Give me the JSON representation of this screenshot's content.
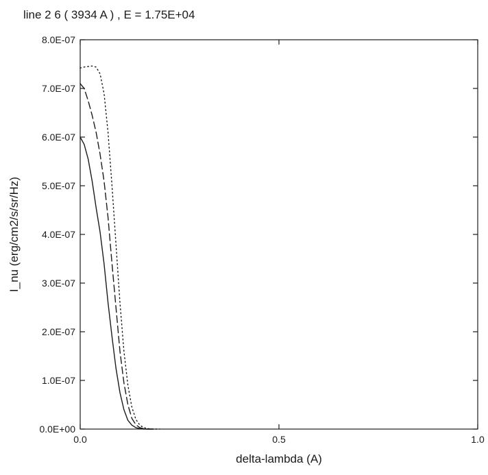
{
  "chart_data": {
    "type": "line",
    "title": "line 2 6 ( 3934 A ) , E = 1.75E+04",
    "xlabel": "delta-lambda (A)",
    "ylabel": "I_nu (erg/cm2/s/sr/Hz)",
    "xlim": [
      0.0,
      1.0
    ],
    "ylim": [
      0.0,
      8e-07
    ],
    "x_ticks": [
      0.0,
      0.5,
      1.0
    ],
    "x_tick_labels": [
      "0.0",
      "0.5",
      "1.0"
    ],
    "y_ticks": [
      0,
      1e-07,
      2e-07,
      3e-07,
      4e-07,
      5e-07,
      6e-07,
      7e-07,
      8e-07
    ],
    "y_tick_labels": [
      "0.0E+00",
      "1.0E-07",
      "2.0E-07",
      "3.0E-07",
      "4.0E-07",
      "5.0E-07",
      "6.0E-07",
      "7.0E-07",
      "8.0E-07"
    ],
    "grid": false,
    "series": [
      {
        "style": "solid",
        "color": "#1a1a1a",
        "x": [
          0.0,
          0.01,
          0.02,
          0.03,
          0.04,
          0.05,
          0.06,
          0.07,
          0.08,
          0.09,
          0.1,
          0.11,
          0.12,
          0.13,
          0.14,
          0.15,
          0.16,
          0.17,
          0.18
        ],
        "y": [
          6e-07,
          5.85e-07,
          5.55e-07,
          5.1e-07,
          4.55e-07,
          4.05e-07,
          3.4e-07,
          2.6e-07,
          1.9e-07,
          1.25e-07,
          7.5e-08,
          4e-08,
          1.8e-08,
          8e-09,
          3e-09,
          1e-09,
          0.0,
          0.0,
          0.0
        ]
      },
      {
        "style": "dashed",
        "color": "#1a1a1a",
        "x": [
          0.0,
          0.01,
          0.02,
          0.03,
          0.04,
          0.05,
          0.06,
          0.07,
          0.08,
          0.09,
          0.1,
          0.11,
          0.12,
          0.13,
          0.14,
          0.15,
          0.16,
          0.17,
          0.18,
          0.19
        ],
        "y": [
          7.1e-07,
          7e-07,
          6.75e-07,
          6.45e-07,
          6.1e-07,
          5.65e-07,
          5.1e-07,
          4.35e-07,
          3.4e-07,
          2.5e-07,
          1.6e-07,
          9.5e-08,
          5e-08,
          2.2e-08,
          9e-09,
          3e-09,
          1e-09,
          0.0,
          0.0,
          0.0
        ]
      },
      {
        "style": "dotted",
        "color": "#1a1a1a",
        "x": [
          0.0,
          0.01,
          0.02,
          0.03,
          0.04,
          0.05,
          0.06,
          0.07,
          0.08,
          0.09,
          0.1,
          0.11,
          0.12,
          0.13,
          0.14,
          0.15,
          0.16,
          0.17,
          0.18,
          0.19,
          0.2
        ],
        "y": [
          7.42e-07,
          7.44e-07,
          7.45e-07,
          7.46e-07,
          7.44e-07,
          7.3e-07,
          6.9e-07,
          6.1e-07,
          5e-07,
          3.8e-07,
          2.6e-07,
          1.6e-07,
          9e-08,
          4.5e-08,
          2e-08,
          8e-09,
          3e-09,
          1e-09,
          0.0,
          0.0,
          0.0
        ]
      }
    ]
  }
}
